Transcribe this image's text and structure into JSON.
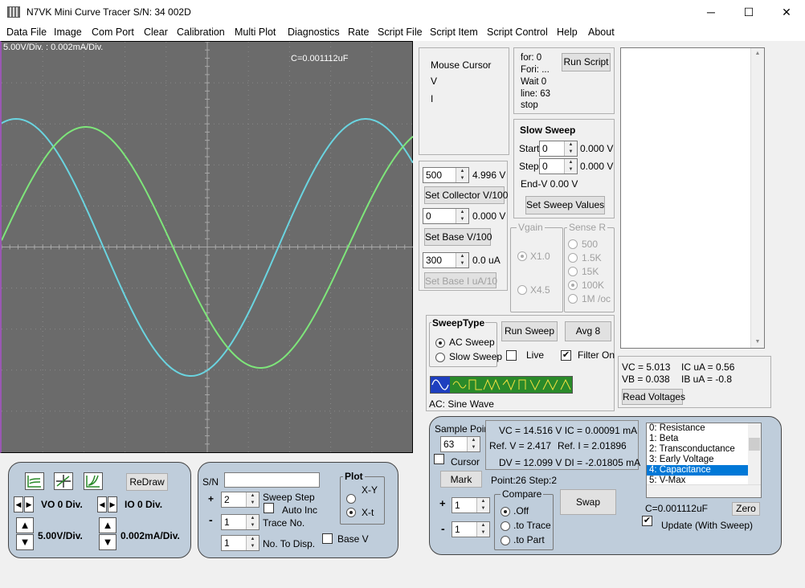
{
  "window": {
    "title": "N7VK Mini Curve Tracer S/N: 34  002D",
    "minimize": "─",
    "maximize": "☐",
    "close": "✕"
  },
  "menu": [
    "Data File",
    "Image",
    "Com Port",
    "Clear",
    "Calibration",
    "Multi Plot",
    "Diagnostics",
    "Rate",
    "Script File",
    "Script Item",
    "Script Control",
    "Help",
    "About"
  ],
  "scope": {
    "div_label": "5.00V/Div. : 0.002mA/Div.",
    "cap_label": "C=0.001112uF",
    "trace_colors": {
      "cyan": "#6ad4e0",
      "green": "#7ee67a"
    }
  },
  "mouse_cursor": {
    "title": "Mouse Cursor",
    "v": "V",
    "i": "I"
  },
  "script": {
    "for": "for: 0",
    "fori": "Fori: ...",
    "wait": "Wait 0",
    "line": "line: 63",
    "stop": "stop",
    "run_button": "Run Script"
  },
  "slow_sweep": {
    "title": "Slow Sweep",
    "start_label": "Start",
    "start_value": "0",
    "start_volt": "0.000 V",
    "step_label": "Step",
    "step_value": "0",
    "step_volt": "0.000 V",
    "end_v": "End-V 0.00 V",
    "set_button": "Set Sweep Values"
  },
  "collector": {
    "value": "500",
    "volt": "4.996 V",
    "button": "Set Collector V/100"
  },
  "base": {
    "value": "0",
    "volt": "0.000 V",
    "button": "Set Base V/100"
  },
  "base_i": {
    "value": "300",
    "current": "0.0 uA",
    "button": "Set Base I uA/10"
  },
  "vgain": {
    "title": "Vgain",
    "x1": "X1.0",
    "x45": "X4.5"
  },
  "sense_r": {
    "title": "Sense R",
    "opts": [
      "500",
      "1.5K",
      "15K",
      "100K",
      "1M /oc"
    ]
  },
  "sweep_type": {
    "title": "SweepType",
    "ac": "AC Sweep",
    "slow": "Slow Sweep",
    "run_button": "Run Sweep",
    "avg_button": "Avg 8",
    "live": "Live",
    "filter": "Filter On",
    "filter_check": "✔",
    "wave_label": "AC: Sine Wave"
  },
  "voltages": {
    "vc": "VC =  5.013",
    "ic": "IC uA = 0.56",
    "vb": "VB =  0.038",
    "ib": "IB uA = -0.8",
    "read_button": "Read Voltages"
  },
  "sample": {
    "title": "Sample Point",
    "value": "63",
    "cursor": "Cursor",
    "mark_button": "Mark",
    "readout1": "VC = 14.516 V IC = 0.00091 mA",
    "readout2a": "Ref. V = 2.417",
    "readout2b": "Ref. I = 2.01896",
    "readout3": "DV = 12.099 V DI = -2.01805 mA",
    "point_step": "Point:26 Step:2",
    "plus": "+",
    "minus": "-",
    "plus_value": "1",
    "minus_value": "1"
  },
  "compare": {
    "title": "Compare",
    "off": ".Off",
    "trace": ".to Trace",
    "part": ".to Part",
    "swap_button": "Swap"
  },
  "model_list": {
    "items": [
      "0: Resistance",
      "1: Beta",
      "2: Transconductance",
      "3: Early Voltage",
      "4: Capacitance",
      "5: V-Max"
    ],
    "selected": 4,
    "cap_value": "C=0.001112uF",
    "zero_button": "Zero",
    "update": "Update (With Sweep)",
    "update_check": "✔"
  },
  "display": {
    "redraw_button": "ReDraw",
    "vo": "VO 0 Div.",
    "io": "IO 0 Div.",
    "vscale": "5.00V/Div.",
    "iscale": "0.002mA/Div."
  },
  "trace": {
    "sn_label": "S/N",
    "sn_value": "",
    "sweep_step": "Sweep Step",
    "sweep_step_value": "2",
    "auto_inc": "Auto Inc",
    "trace_no": "Trace No.",
    "trace_no_value": "1",
    "no_disp": "No. To Disp.",
    "no_disp_value": "1",
    "plus": "+",
    "minus": "-",
    "plot_title": "Plot",
    "xy": "X-Y",
    "xt": "X-t",
    "base_v": "Base V"
  }
}
